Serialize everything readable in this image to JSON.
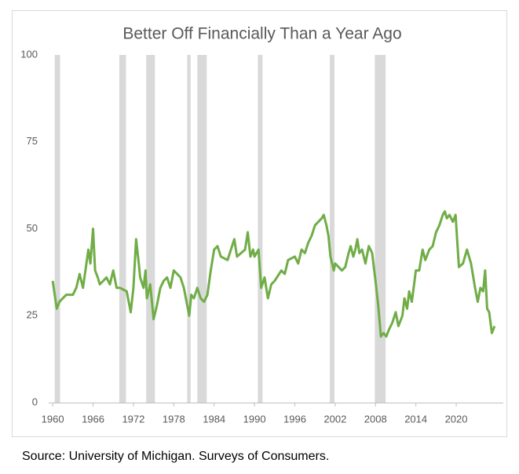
{
  "chart_data": {
    "type": "line",
    "title": "Better Off Financially Than a Year Ago",
    "source": "Source: University of Michigan. Surveys of Consumers.",
    "color": "#70ad47",
    "band_color": "#d9d9d9",
    "recessions": [
      [
        1960.3,
        1961.1
      ],
      [
        1969.9,
        1970.9
      ],
      [
        1973.9,
        1975.2
      ],
      [
        1980.0,
        1980.5
      ],
      [
        1981.5,
        1982.9
      ],
      [
        1990.5,
        1991.2
      ],
      [
        2001.2,
        2001.9
      ],
      [
        2007.9,
        2009.5
      ]
    ],
    "x": [
      1960,
      1960.3,
      1960.6,
      1961,
      1962,
      1963,
      1963.5,
      1964,
      1964.5,
      1965.3,
      1965.6,
      1966,
      1966.3,
      1966.7,
      1967,
      1968,
      1968.5,
      1969,
      1969.5,
      1970,
      1971,
      1971.6,
      1972,
      1972.4,
      1972.8,
      1973,
      1973.5,
      1973.8,
      1974,
      1974.5,
      1975,
      1975.5,
      1976,
      1976.5,
      1977,
      1977.5,
      1978,
      1978.5,
      1979,
      1979.5,
      1980,
      1980.3,
      1980.6,
      1981,
      1981.5,
      1982,
      1982.5,
      1983,
      1983.5,
      1984,
      1984.5,
      1985,
      1986,
      1986.5,
      1987,
      1987.4,
      1988,
      1988.6,
      1989,
      1989.4,
      1989.8,
      1990,
      1990.6,
      1991,
      1991.5,
      1992,
      1992.5,
      1993,
      1994,
      1994.5,
      1995,
      1996,
      1996.5,
      1997,
      1997.5,
      1998,
      1998.5,
      1999,
      2000,
      2000.3,
      2000.7,
      2001,
      2001.3,
      2001.8,
      2002,
      2002.5,
      2003,
      2003.5,
      2004,
      2004.3,
      2004.7,
      2005,
      2005.3,
      2005.6,
      2006,
      2006.5,
      2007,
      2007.5,
      2008,
      2008.4,
      2008.8,
      2009.2,
      2009.6,
      2010,
      2010.5,
      2011,
      2011.4,
      2012,
      2012.3,
      2012.7,
      2013,
      2013.4,
      2013.8,
      2014,
      2014.5,
      2015,
      2015.4,
      2016,
      2016.5,
      2017,
      2017.5,
      2018,
      2018.3,
      2018.6,
      2019,
      2019.5,
      2019.9,
      2020.4,
      2021,
      2021.6,
      2022.2,
      2022.8,
      2023.2,
      2023.6,
      2024,
      2024.3,
      2024.6,
      2024.9,
      2025.3,
      2025.7
    ],
    "values": [
      35,
      31,
      27,
      29,
      31,
      31,
      33,
      37,
      33,
      44,
      40,
      50,
      38,
      36,
      34,
      36,
      34,
      38,
      33,
      33,
      32,
      26,
      33,
      47,
      40,
      36,
      33,
      38,
      30,
      34,
      24,
      28,
      33,
      35,
      36,
      33,
      38,
      37,
      36,
      33,
      28,
      25,
      31,
      30,
      33,
      30,
      29,
      31,
      38,
      44,
      45,
      42,
      41,
      44,
      47,
      42,
      43,
      44,
      49,
      42,
      44,
      42,
      44,
      33,
      36,
      30,
      34,
      35,
      38,
      37,
      41,
      42,
      40,
      44,
      43,
      46,
      48,
      51,
      53,
      54,
      51,
      48,
      42,
      38,
      40,
      39,
      38,
      39,
      43,
      45,
      42,
      44,
      47,
      43,
      44,
      40,
      45,
      43,
      35,
      28,
      19,
      20,
      19,
      21,
      23,
      26,
      22,
      25,
      30,
      27,
      32,
      29,
      35,
      38,
      38,
      44,
      41,
      44,
      45,
      49,
      51,
      54,
      55,
      53,
      54,
      52,
      54,
      39,
      40,
      44,
      40,
      33,
      29,
      33,
      32,
      38,
      27,
      26,
      20,
      22
    ],
    "xlim": [
      1959.4,
      2027
    ],
    "xticks": [
      1960,
      1966,
      1972,
      1978,
      1984,
      1990,
      1996,
      2002,
      2008,
      2014,
      2020
    ],
    "ylim": [
      0,
      100
    ],
    "yticks": [
      0,
      25,
      50,
      75,
      100
    ],
    "grid": false
  }
}
